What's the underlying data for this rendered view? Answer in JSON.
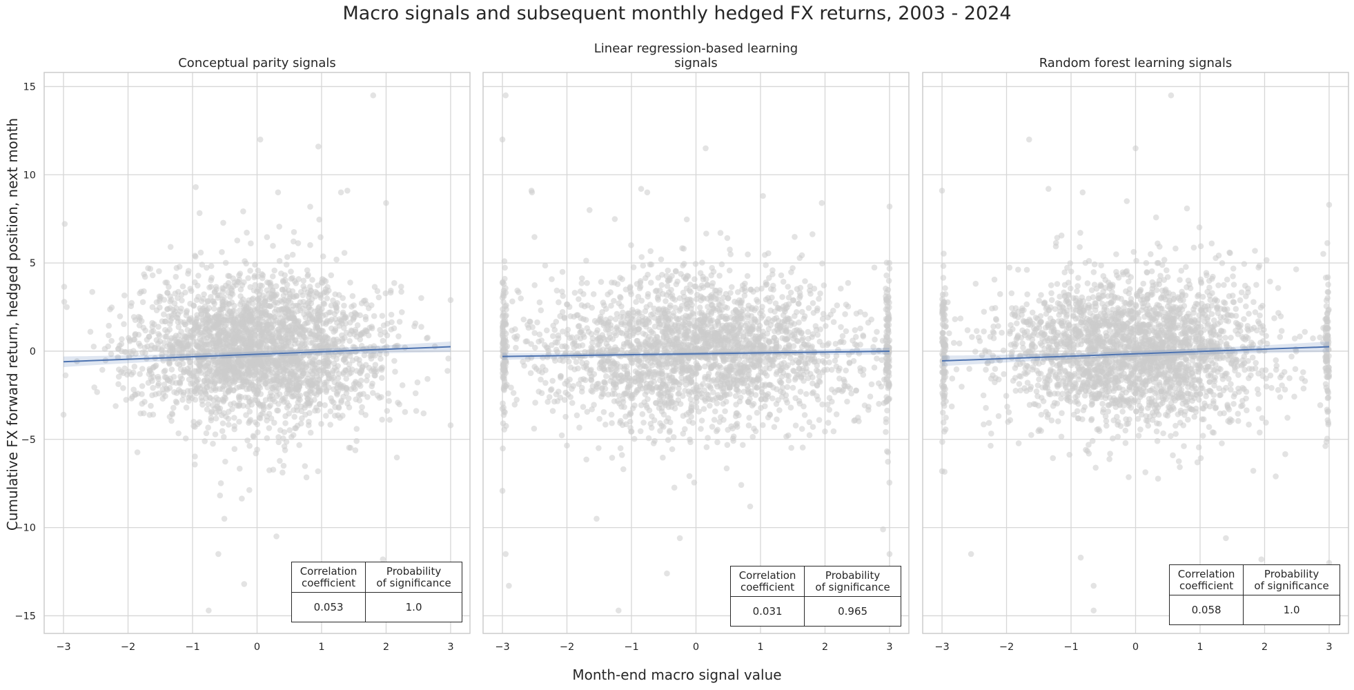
{
  "figure": {
    "title": "Macro signals and subsequent monthly hedged FX returns, 2003 - 2024",
    "xlabel": "Month-end macro signal value",
    "ylabel": "Cumulative FX forward return, hedged position, next month"
  },
  "chart_data": [
    {
      "type": "scatter",
      "title": "Conceptual parity signals",
      "xlim": [
        -3.3,
        3.3
      ],
      "ylim": [
        -16,
        15.8
      ],
      "xticks": [
        -3,
        -2,
        -1,
        0,
        1,
        2,
        3
      ],
      "yticks": [
        -15,
        -10,
        -5,
        0,
        5,
        10,
        15
      ],
      "grid": true,
      "point_color": "#cccccc",
      "line_color": "#4c72b0",
      "scatter_spread_x": 0.95,
      "n_points": 2700,
      "edge_cluster": false,
      "regression": {
        "x": [
          -3,
          3
        ],
        "y": [
          -0.6,
          0.25
        ],
        "ci_halfwidth_at_edge": 0.3
      },
      "outliers": [
        [
          1.8,
          14.5
        ],
        [
          0.05,
          12.0
        ],
        [
          0.95,
          11.6
        ],
        [
          -0.95,
          9.3
        ],
        [
          1.4,
          9.1
        ],
        [
          2.0,
          8.4
        ],
        [
          -0.6,
          -11.5
        ],
        [
          0.3,
          -10.5
        ],
        [
          -0.75,
          -14.7
        ],
        [
          -0.2,
          -13.2
        ],
        [
          1.95,
          -11.8
        ],
        [
          -3.0,
          -3.6
        ],
        [
          -2.95,
          2.5
        ],
        [
          3.0,
          2.9
        ],
        [
          3.0,
          -4.2
        ],
        [
          -2.3,
          0.9
        ]
      ],
      "stats": {
        "headers": [
          "Correlation\ncoefficient",
          "Probability\nof significance"
        ],
        "values": [
          "0.053",
          "1.0"
        ]
      }
    },
    {
      "type": "scatter",
      "title": "Linear regression-based learning\nsignals",
      "xlim": [
        -3.3,
        3.3
      ],
      "ylim": [
        -16,
        15.8
      ],
      "xticks": [
        -3,
        -2,
        -1,
        0,
        1,
        2,
        3
      ],
      "yticks": [
        -15,
        -10,
        -5,
        0,
        5,
        10,
        15
      ],
      "grid": true,
      "point_color": "#cccccc",
      "line_color": "#4c72b0",
      "scatter_spread_x": 1.25,
      "n_points": 2600,
      "edge_cluster": true,
      "regression": {
        "x": [
          -3,
          3
        ],
        "y": [
          -0.3,
          0.0
        ],
        "ci_halfwidth_at_edge": 0.2
      },
      "outliers": [
        [
          -2.95,
          14.5
        ],
        [
          -3.0,
          12.0
        ],
        [
          0.15,
          11.5
        ],
        [
          -0.85,
          9.2
        ],
        [
          1.95,
          8.4
        ],
        [
          3.0,
          8.2
        ],
        [
          -2.55,
          9.1
        ],
        [
          -1.65,
          8.0
        ],
        [
          -0.45,
          -12.6
        ],
        [
          -1.2,
          -14.7
        ],
        [
          -2.9,
          -13.3
        ],
        [
          -2.95,
          -11.5
        ],
        [
          2.9,
          -10.1
        ],
        [
          3.0,
          -11.5
        ],
        [
          -0.25,
          -10.6
        ]
      ],
      "stats": {
        "headers": [
          "Correlation\ncoefficient",
          "Probability\nof significance"
        ],
        "values": [
          "0.031",
          "0.965"
        ]
      }
    },
    {
      "type": "scatter",
      "title": "Random forest learning signals",
      "xlim": [
        -3.3,
        3.3
      ],
      "ylim": [
        -16,
        15.8
      ],
      "xticks": [
        -3,
        -2,
        -1,
        0,
        1,
        2,
        3
      ],
      "yticks": [
        -15,
        -10,
        -5,
        0,
        5,
        10,
        15
      ],
      "grid": true,
      "point_color": "#cccccc",
      "line_color": "#4c72b0",
      "scatter_spread_x": 1.05,
      "n_points": 2700,
      "edge_cluster": true,
      "regression": {
        "x": [
          -3,
          3
        ],
        "y": [
          -0.55,
          0.25
        ],
        "ci_halfwidth_at_edge": 0.3
      },
      "outliers": [
        [
          0.55,
          14.5
        ],
        [
          -1.65,
          12.0
        ],
        [
          0.0,
          11.5
        ],
        [
          -1.35,
          9.2
        ],
        [
          -3.0,
          9.1
        ],
        [
          3.0,
          8.3
        ],
        [
          -0.85,
          -11.7
        ],
        [
          -2.55,
          -11.5
        ],
        [
          -0.65,
          -14.7
        ],
        [
          -0.65,
          -13.3
        ],
        [
          1.95,
          -11.8
        ],
        [
          1.4,
          -10.6
        ],
        [
          -3.0,
          -6.8
        ],
        [
          3.0,
          -12.0
        ]
      ],
      "stats": {
        "headers": [
          "Correlation\ncoefficient",
          "Probability\nof significance"
        ],
        "values": [
          "0.058",
          "1.0"
        ]
      }
    }
  ]
}
